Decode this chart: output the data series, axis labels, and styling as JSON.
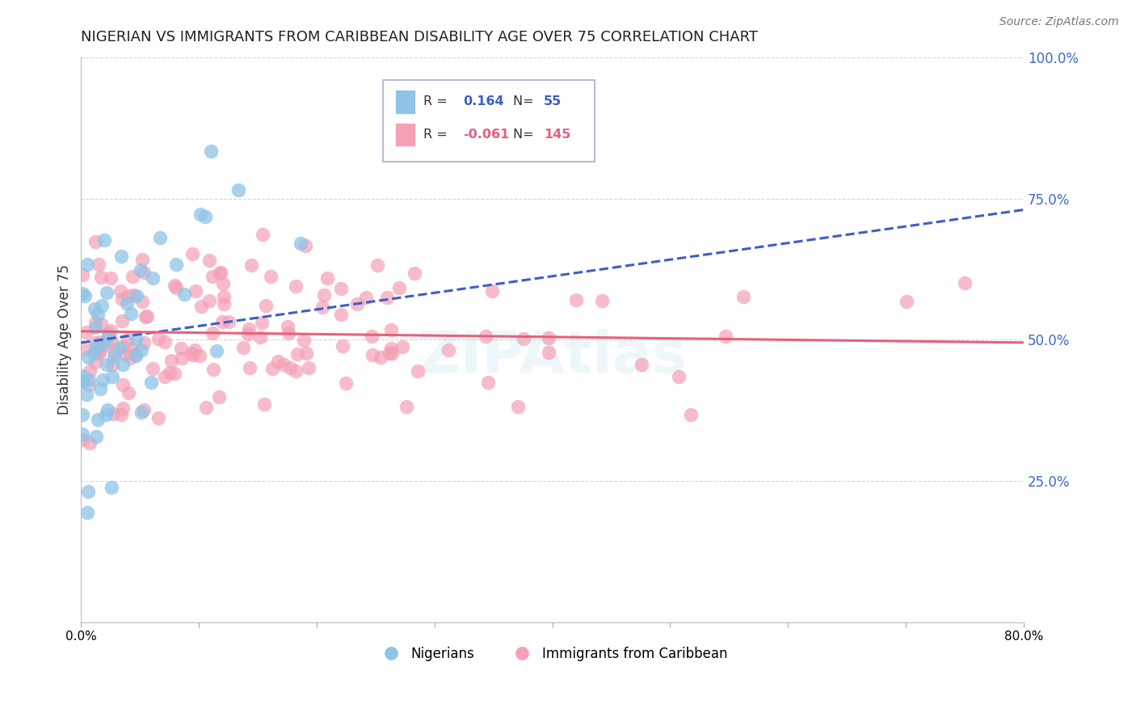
{
  "title": "NIGERIAN VS IMMIGRANTS FROM CARIBBEAN DISABILITY AGE OVER 75 CORRELATION CHART",
  "source": "Source: ZipAtlas.com",
  "ylabel": "Disability Age Over 75",
  "watermark": "ZIPAtlas",
  "xlim": [
    0.0,
    0.8
  ],
  "ylim": [
    0.0,
    1.0
  ],
  "x_ticks": [
    0.0,
    0.1,
    0.2,
    0.3,
    0.4,
    0.5,
    0.6,
    0.7,
    0.8
  ],
  "y_tick_labels_right": [
    "100.0%",
    "75.0%",
    "50.0%",
    "25.0%"
  ],
  "y_ticks_right": [
    1.0,
    0.75,
    0.5,
    0.25
  ],
  "blue_R": 0.164,
  "blue_N": 55,
  "pink_R": -0.061,
  "pink_N": 145,
  "blue_color": "#8ec4e8",
  "pink_color": "#f4a0b5",
  "blue_line_color": "#3a5fc8",
  "pink_line_color": "#e8607a",
  "grid_color": "#cccccc",
  "title_color": "#222222",
  "axis_label_color": "#333333",
  "right_tick_color": "#4169c8",
  "blue_seed": 12,
  "pink_seed": 99
}
